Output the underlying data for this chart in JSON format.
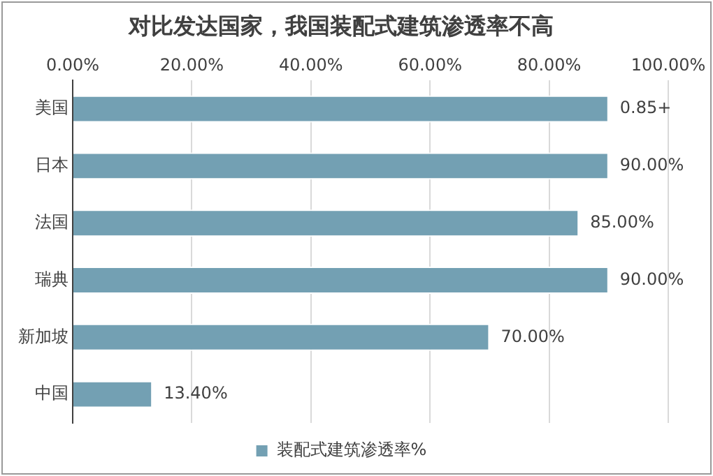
{
  "chart_data": {
    "type": "bar",
    "orientation": "horizontal",
    "title": "对比发达国家，我国装配式建筑渗透率不高",
    "categories": [
      "美国",
      "日本",
      "法国",
      "瑞典",
      "新加坡",
      "中国"
    ],
    "series": [
      {
        "name": "装配式建筑渗透率%",
        "color": "#73a0b3",
        "values": [
          90,
          90,
          85,
          90,
          70,
          13.4
        ],
        "value_labels": [
          "0.85+",
          "90.00%",
          "85.00%",
          "90.00%",
          "70.00%",
          "13.40%"
        ]
      }
    ],
    "xlim": [
      0,
      100
    ],
    "xticks": [
      {
        "value": 0,
        "label": "0.00%"
      },
      {
        "value": 20,
        "label": "20.00%"
      },
      {
        "value": 40,
        "label": "40.00%"
      },
      {
        "value": 60,
        "label": "60.00%"
      },
      {
        "value": 80,
        "label": "80.00%"
      },
      {
        "value": 100,
        "label": "100.00%"
      }
    ],
    "grid": "x",
    "legend": "bottom"
  }
}
